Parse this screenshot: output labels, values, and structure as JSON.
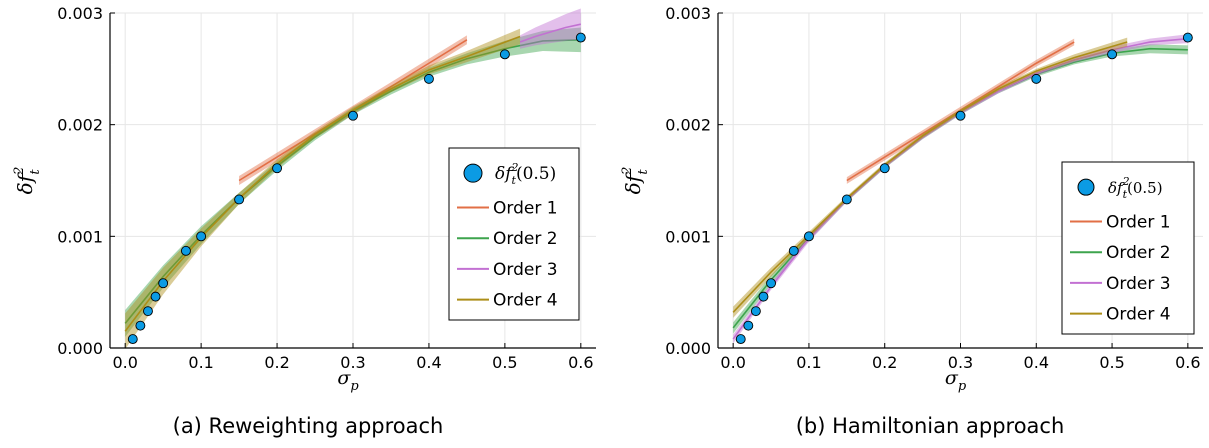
{
  "chart_data": [
    {
      "type": "line",
      "caption": "(a) Reweighting approach",
      "xlabel": "σ",
      "xlabel_sub": "p",
      "ylabel": "δf",
      "ylabel_sup": "2",
      "ylabel_sub": "t",
      "xlim": [
        -0.02,
        0.62
      ],
      "ylim": [
        0,
        0.003
      ],
      "xticks": [
        "0.0",
        "0.1",
        "0.2",
        "0.3",
        "0.4",
        "0.5",
        "0.6"
      ],
      "yticks": [
        "0.000",
        "0.001",
        "0.002",
        "0.003"
      ],
      "grid": true,
      "legend_position": "right",
      "points": {
        "name": "δf",
        "name_sup": "2",
        "name_sub": "t",
        "name_suffix": "(0.5)",
        "color": "#0b9be4",
        "x": [
          0.01,
          0.02,
          0.03,
          0.04,
          0.05,
          0.08,
          0.1,
          0.15,
          0.2,
          0.3,
          0.4,
          0.5,
          0.6
        ],
        "y": [
          8e-05,
          0.0002,
          0.00033,
          0.00046,
          0.00058,
          0.00087,
          0.001,
          0.00133,
          0.00161,
          0.00208,
          0.00241,
          0.00263,
          0.00278
        ]
      },
      "series": [
        {
          "name": "Order 1",
          "color": "#e26f46",
          "x": [
            0.15,
            0.2,
            0.25,
            0.3,
            0.35,
            0.4,
            0.45
          ],
          "y": [
            0.0015,
            0.00171,
            0.00192,
            0.00213,
            0.00234,
            0.00255,
            0.00276
          ],
          "band": [
            4e-05,
            4e-05,
            4e-05,
            4e-05,
            4e-05,
            4e-05,
            4e-05
          ]
        },
        {
          "name": "Order 2",
          "color": "#3da44d",
          "x": [
            0.0,
            0.05,
            0.1,
            0.15,
            0.2,
            0.25,
            0.3,
            0.35,
            0.4,
            0.45,
            0.5,
            0.55,
            0.6
          ],
          "y": [
            0.00022,
            0.00064,
            0.00101,
            0.00134,
            0.00163,
            0.00189,
            0.00212,
            0.0023,
            0.00247,
            0.00259,
            0.00268,
            0.00275,
            0.00276
          ],
          "band": [
            0.00012,
            0.0001,
            8e-05,
            5e-05,
            4e-05,
            3e-05,
            3e-05,
            3e-05,
            4e-05,
            5e-05,
            7e-05,
            9e-05,
            0.00011
          ]
        },
        {
          "name": "Order 3",
          "color": "#c271d2",
          "x": [
            0.52,
            0.54,
            0.56,
            0.58,
            0.6
          ],
          "y": [
            0.00274,
            0.00279,
            0.00283,
            0.00287,
            0.0029
          ],
          "band": [
            6e-05,
            8e-05,
            0.0001,
            0.00012,
            0.00014
          ]
        },
        {
          "name": "Order 4",
          "color": "#ac8e18",
          "x": [
            0.0,
            0.05,
            0.1,
            0.15,
            0.2,
            0.25,
            0.3,
            0.35,
            0.4,
            0.45,
            0.52
          ],
          "y": [
            0.00015,
            0.0006,
            0.00099,
            0.00134,
            0.00165,
            0.00191,
            0.00213,
            0.00232,
            0.00249,
            0.00261,
            0.00279
          ],
          "band": [
            0.00016,
            0.00012,
            8e-05,
            5e-05,
            4e-05,
            3e-05,
            3e-05,
            3e-05,
            4e-05,
            5e-05,
            7e-05
          ]
        }
      ]
    },
    {
      "type": "line",
      "caption": "(b) Hamiltonian approach",
      "xlabel": "σ",
      "xlabel_sub": "p",
      "ylabel": "δf",
      "ylabel_sup": "2",
      "ylabel_sub": "t",
      "xlim": [
        -0.02,
        0.62
      ],
      "ylim": [
        0,
        0.003
      ],
      "xticks": [
        "0.0",
        "0.1",
        "0.2",
        "0.3",
        "0.4",
        "0.5",
        "0.6"
      ],
      "yticks": [
        "0.000",
        "0.001",
        "0.002",
        "0.003"
      ],
      "grid": true,
      "legend_position": "right",
      "points": {
        "name": "δf",
        "name_sup": "2",
        "name_sub": "t",
        "name_suffix": "(0.5)",
        "color": "#0b9be4",
        "x": [
          0.01,
          0.02,
          0.03,
          0.04,
          0.05,
          0.08,
          0.1,
          0.15,
          0.2,
          0.3,
          0.4,
          0.5,
          0.6
        ],
        "y": [
          8e-05,
          0.0002,
          0.00033,
          0.00046,
          0.00058,
          0.00087,
          0.001,
          0.00133,
          0.00161,
          0.00208,
          0.00241,
          0.00263,
          0.00278
        ]
      },
      "series": [
        {
          "name": "Order 1",
          "color": "#e26f46",
          "x": [
            0.15,
            0.2,
            0.25,
            0.3,
            0.35,
            0.4,
            0.45
          ],
          "y": [
            0.0015,
            0.00171,
            0.00192,
            0.00213,
            0.00234,
            0.00255,
            0.00274
          ],
          "band": [
            3e-05,
            3e-05,
            3e-05,
            3e-05,
            3e-05,
            3e-05,
            3e-05
          ]
        },
        {
          "name": "Order 2",
          "color": "#3da44d",
          "x": [
            0.0,
            0.05,
            0.1,
            0.15,
            0.2,
            0.25,
            0.3,
            0.35,
            0.4,
            0.45,
            0.5,
            0.55,
            0.6
          ],
          "y": [
            0.00018,
            0.00061,
            0.00099,
            0.00133,
            0.00163,
            0.00189,
            0.00211,
            0.0023,
            0.00245,
            0.00256,
            0.00264,
            0.00268,
            0.00267
          ],
          "band": [
            5e-05,
            4e-05,
            3e-05,
            2e-05,
            2e-05,
            2e-05,
            2e-05,
            2e-05,
            2e-05,
            2e-05,
            3e-05,
            4e-05,
            4e-05
          ]
        },
        {
          "name": "Order 3",
          "color": "#c271d2",
          "x": [
            0.0,
            0.05,
            0.1,
            0.15,
            0.2,
            0.25,
            0.3,
            0.35,
            0.4,
            0.45,
            0.5,
            0.55,
            0.6
          ],
          "y": [
            8e-05,
            0.00055,
            0.00098,
            0.00133,
            0.00163,
            0.00189,
            0.00211,
            0.0023,
            0.00246,
            0.00258,
            0.00267,
            0.00274,
            0.00277
          ],
          "band": [
            4e-05,
            3e-05,
            3e-05,
            2e-05,
            2e-05,
            2e-05,
            2e-05,
            2e-05,
            2e-05,
            2e-05,
            3e-05,
            3e-05,
            4e-05
          ]
        },
        {
          "name": "Order 4",
          "color": "#ac8e18",
          "x": [
            0.0,
            0.05,
            0.1,
            0.15,
            0.2,
            0.25,
            0.3,
            0.35,
            0.4,
            0.45,
            0.52
          ],
          "y": [
            0.00032,
            0.00068,
            0.00101,
            0.00134,
            0.00164,
            0.0019,
            0.00212,
            0.00232,
            0.00248,
            0.0026,
            0.00274
          ],
          "band": [
            5e-05,
            4e-05,
            3e-05,
            2e-05,
            2e-05,
            2e-05,
            2e-05,
            2e-05,
            2e-05,
            3e-05,
            4e-05
          ]
        }
      ]
    }
  ]
}
